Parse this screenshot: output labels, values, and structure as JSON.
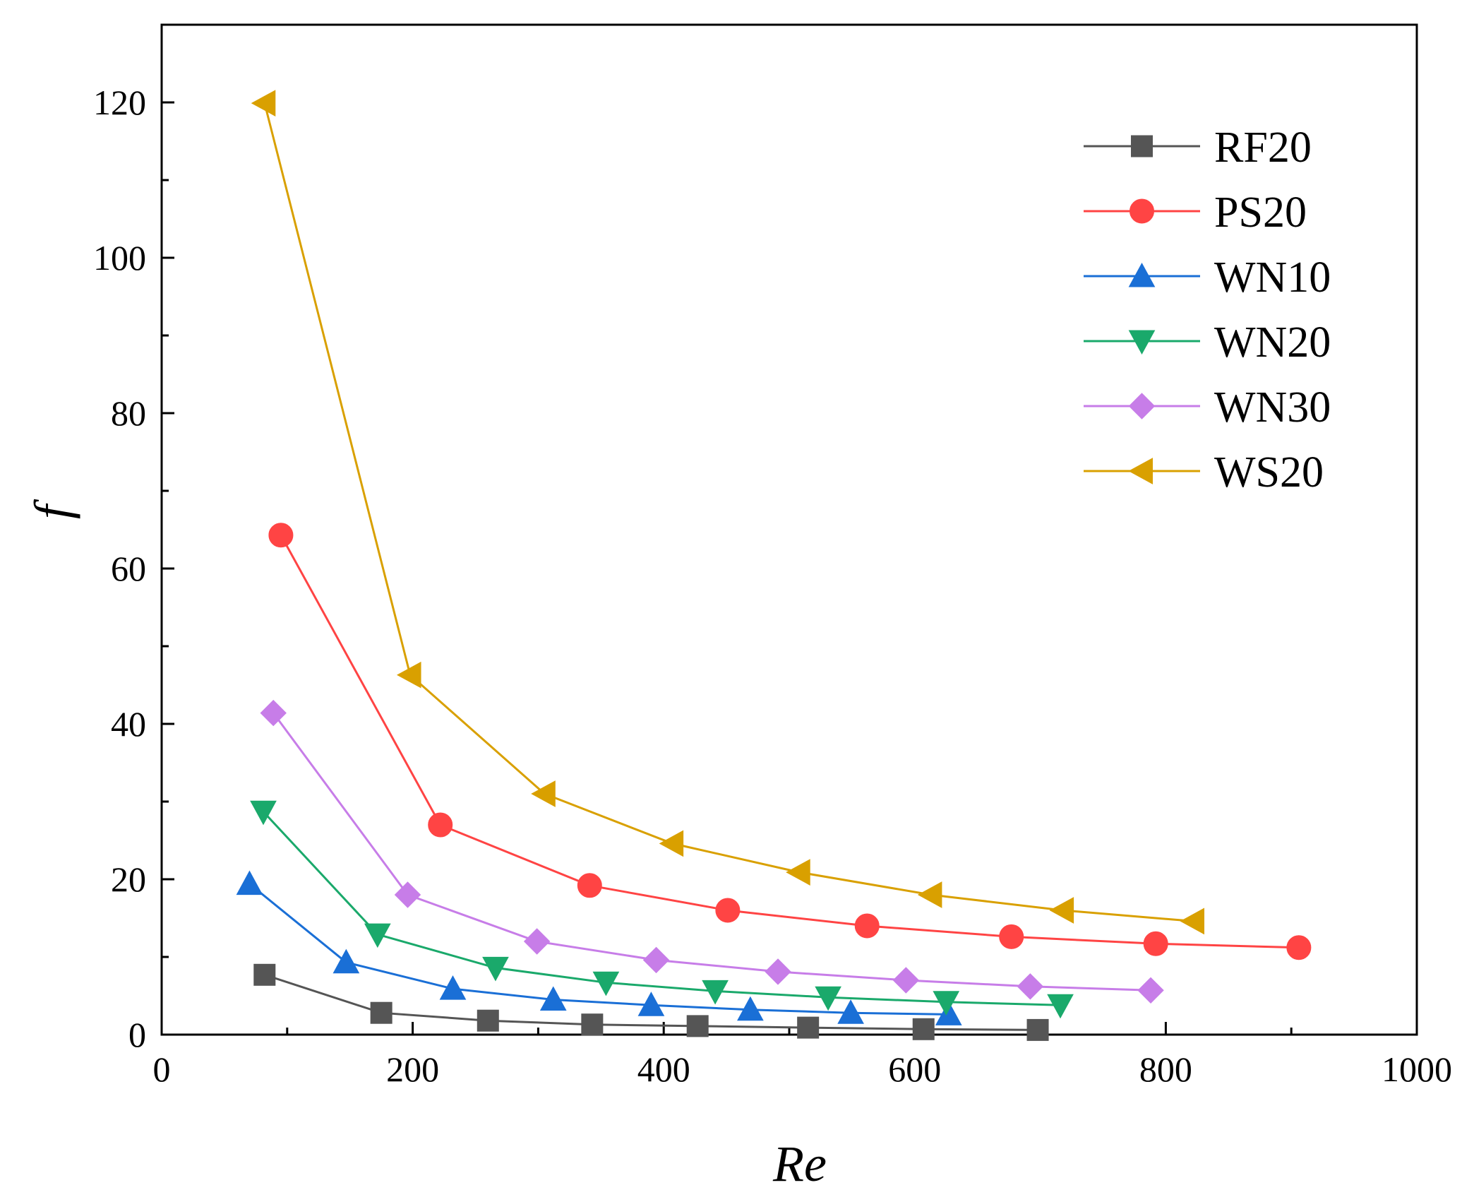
{
  "chart_data": {
    "type": "line",
    "title": "",
    "xlabel": "Re",
    "ylabel": "f",
    "xlim": [
      0,
      1000
    ],
    "ylim": [
      0,
      130
    ],
    "x_ticks": [
      0,
      200,
      400,
      600,
      800,
      1000
    ],
    "y_ticks": [
      0,
      20,
      40,
      60,
      80,
      100,
      120
    ],
    "x_tick_labels": [
      "0",
      "200",
      "400",
      "600",
      "800",
      "1000"
    ],
    "y_tick_labels": [
      "0",
      "20",
      "40",
      "60",
      "80",
      "100",
      "120"
    ],
    "grid": false,
    "legend_position": "top-right",
    "series": [
      {
        "name": "RF20",
        "color": "#555555",
        "marker": "square",
        "x": [
          82,
          175,
          260,
          343,
          427,
          515,
          607,
          698
        ],
        "y": [
          7.7,
          2.8,
          1.8,
          1.3,
          1.1,
          0.9,
          0.7,
          0.6
        ]
      },
      {
        "name": "PS20",
        "color": "#ff4444",
        "marker": "circle",
        "x": [
          95,
          222,
          341,
          451,
          562,
          677,
          792,
          906
        ],
        "y": [
          64.3,
          27.0,
          19.2,
          16.0,
          14.0,
          12.6,
          11.7,
          11.2
        ]
      },
      {
        "name": "WN10",
        "color": "#1a6fd6",
        "marker": "triangle-up",
        "x": [
          70,
          147,
          232,
          312,
          390,
          469,
          549,
          627
        ],
        "y": [
          19.4,
          9.3,
          5.9,
          4.5,
          3.8,
          3.2,
          2.8,
          2.6
        ]
      },
      {
        "name": "WN20",
        "color": "#1aa96b",
        "marker": "triangle-down",
        "x": [
          81,
          172,
          266,
          354,
          441,
          531,
          625,
          716
        ],
        "y": [
          28.7,
          12.9,
          8.6,
          6.7,
          5.6,
          4.8,
          4.2,
          3.8
        ]
      },
      {
        "name": "WN30",
        "color": "#c77de8",
        "marker": "diamond",
        "x": [
          89,
          196,
          299,
          394,
          491,
          593,
          692,
          788
        ],
        "y": [
          41.4,
          18.0,
          12.0,
          9.6,
          8.1,
          7.0,
          6.2,
          5.7
        ]
      },
      {
        "name": "WS20",
        "color": "#d9a000",
        "marker": "triangle-left",
        "x": [
          82,
          198,
          305,
          407,
          508,
          613,
          718,
          822
        ],
        "y": [
          119.9,
          46.3,
          31.0,
          24.6,
          20.9,
          18.0,
          16.0,
          14.6
        ]
      }
    ]
  }
}
